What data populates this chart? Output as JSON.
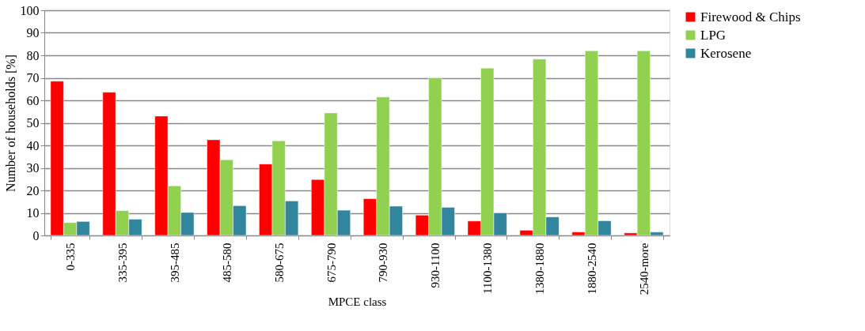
{
  "chart_data": {
    "type": "bar",
    "xlabel": "MPCE class",
    "ylabel": "Number of households [%]",
    "categories": [
      "0-335",
      "335-395",
      "395-485",
      "485-580",
      "580-675",
      "675-790",
      "790-930",
      "930-1100",
      "1100-1380",
      "1380-1880",
      "1880-2540",
      "2540-more"
    ],
    "series": [
      {
        "name": "Firewood & Chips",
        "color": "#ff0000",
        "values": [
          68.5,
          63.6,
          53,
          42.5,
          31.7,
          24.8,
          16.3,
          9,
          6.4,
          2.3,
          1.5,
          1.1
        ]
      },
      {
        "name": "LPG",
        "color": "#92d050",
        "values": [
          5.7,
          11,
          22,
          33.6,
          42,
          54.4,
          61.5,
          70,
          74.3,
          78.3,
          82,
          82
        ]
      },
      {
        "name": "Kerosene",
        "color": "#31859c",
        "values": [
          6.2,
          7.2,
          10.2,
          13.2,
          15.3,
          11.2,
          13,
          12.5,
          10,
          8.2,
          6.5,
          1.5
        ]
      }
    ],
    "ylim": [
      0,
      100
    ],
    "yticks": [
      0,
      10,
      20,
      30,
      40,
      50,
      60,
      70,
      80,
      90,
      100
    ],
    "grid": "y",
    "legend": "right"
  }
}
